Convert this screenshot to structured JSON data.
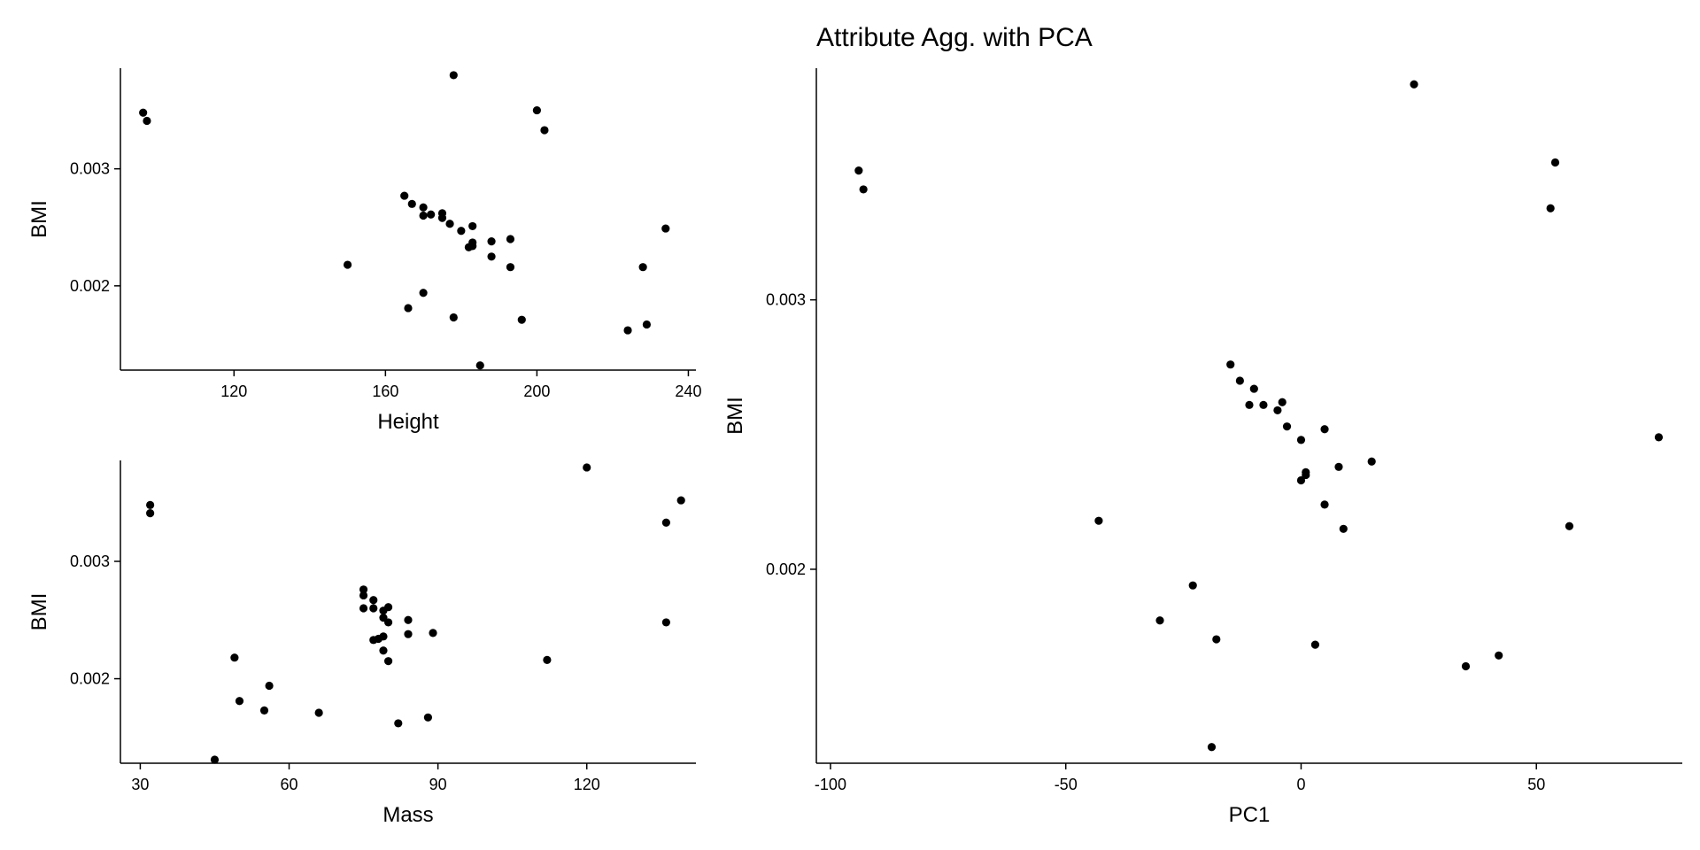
{
  "chart_data": [
    {
      "type": "scatter",
      "title": "",
      "xlabel": "Height",
      "ylabel": "BMI",
      "xlim": [
        90,
        242
      ],
      "ylim": [
        0.00128,
        0.00386
      ],
      "xticks": [
        120,
        160,
        200,
        240
      ],
      "yticks": [
        0.002,
        0.003
      ],
      "grid": false,
      "points": [
        {
          "x": 96,
          "y": 0.00348
        },
        {
          "x": 97,
          "y": 0.00341
        },
        {
          "x": 178,
          "y": 0.0038
        },
        {
          "x": 200,
          "y": 0.0035
        },
        {
          "x": 202,
          "y": 0.00333
        },
        {
          "x": 165,
          "y": 0.00277
        },
        {
          "x": 167,
          "y": 0.0027
        },
        {
          "x": 170,
          "y": 0.00267
        },
        {
          "x": 170,
          "y": 0.0026
        },
        {
          "x": 172,
          "y": 0.00261
        },
        {
          "x": 175,
          "y": 0.00262
        },
        {
          "x": 175,
          "y": 0.00258
        },
        {
          "x": 177,
          "y": 0.00253
        },
        {
          "x": 180,
          "y": 0.00247
        },
        {
          "x": 183,
          "y": 0.00251
        },
        {
          "x": 183,
          "y": 0.00237
        },
        {
          "x": 182,
          "y": 0.00233
        },
        {
          "x": 183,
          "y": 0.00234
        },
        {
          "x": 188,
          "y": 0.00238
        },
        {
          "x": 193,
          "y": 0.0024
        },
        {
          "x": 188,
          "y": 0.00225
        },
        {
          "x": 193,
          "y": 0.00216
        },
        {
          "x": 150,
          "y": 0.00218
        },
        {
          "x": 170,
          "y": 0.00194
        },
        {
          "x": 166,
          "y": 0.00181
        },
        {
          "x": 178,
          "y": 0.00173
        },
        {
          "x": 196,
          "y": 0.00171
        },
        {
          "x": 228,
          "y": 0.00216
        },
        {
          "x": 234,
          "y": 0.00249
        },
        {
          "x": 224,
          "y": 0.00162
        },
        {
          "x": 229,
          "y": 0.00167
        },
        {
          "x": 185,
          "y": 0.00132
        }
      ]
    },
    {
      "type": "scatter",
      "title": "",
      "xlabel": "Mass",
      "ylabel": "BMI",
      "xlim": [
        26,
        142
      ],
      "ylim": [
        0.00128,
        0.00386
      ],
      "xticks": [
        30,
        60,
        90,
        120
      ],
      "yticks": [
        0.002,
        0.003
      ],
      "grid": false,
      "points": [
        {
          "x": 32,
          "y": 0.00348
        },
        {
          "x": 32,
          "y": 0.00341
        },
        {
          "x": 120,
          "y": 0.0038
        },
        {
          "x": 139,
          "y": 0.00352
        },
        {
          "x": 136,
          "y": 0.00333
        },
        {
          "x": 136,
          "y": 0.00248
        },
        {
          "x": 75,
          "y": 0.00276
        },
        {
          "x": 75,
          "y": 0.00271
        },
        {
          "x": 75,
          "y": 0.0026
        },
        {
          "x": 77,
          "y": 0.00267
        },
        {
          "x": 77,
          "y": 0.0026
        },
        {
          "x": 79,
          "y": 0.00258
        },
        {
          "x": 80,
          "y": 0.00261
        },
        {
          "x": 79,
          "y": 0.00252
        },
        {
          "x": 80,
          "y": 0.00248
        },
        {
          "x": 84,
          "y": 0.0025
        },
        {
          "x": 77,
          "y": 0.00233
        },
        {
          "x": 78,
          "y": 0.00234
        },
        {
          "x": 79,
          "y": 0.00236
        },
        {
          "x": 84,
          "y": 0.00238
        },
        {
          "x": 89,
          "y": 0.00239
        },
        {
          "x": 79,
          "y": 0.00224
        },
        {
          "x": 80,
          "y": 0.00215
        },
        {
          "x": 112,
          "y": 0.00216
        },
        {
          "x": 49,
          "y": 0.00218
        },
        {
          "x": 56,
          "y": 0.00194
        },
        {
          "x": 50,
          "y": 0.00181
        },
        {
          "x": 55,
          "y": 0.00173
        },
        {
          "x": 66,
          "y": 0.00171
        },
        {
          "x": 82,
          "y": 0.00162
        },
        {
          "x": 88,
          "y": 0.00167
        },
        {
          "x": 45,
          "y": 0.00131
        }
      ]
    },
    {
      "type": "scatter",
      "title": "Attribute Agg. with PCA",
      "xlabel": "PC1",
      "ylabel": "BMI",
      "xlim": [
        -103,
        81
      ],
      "ylim": [
        0.00128,
        0.00386
      ],
      "xticks": [
        -100,
        -50,
        0,
        50
      ],
      "yticks": [
        0.002,
        0.003
      ],
      "grid": false,
      "points": [
        {
          "x": -94,
          "y": 0.00348
        },
        {
          "x": -93,
          "y": 0.00341
        },
        {
          "x": 24,
          "y": 0.0038
        },
        {
          "x": 54,
          "y": 0.00351
        },
        {
          "x": 53,
          "y": 0.00334
        },
        {
          "x": 76,
          "y": 0.00249
        },
        {
          "x": 57,
          "y": 0.00216
        },
        {
          "x": 42,
          "y": 0.00168
        },
        {
          "x": 35,
          "y": 0.00164
        },
        {
          "x": -15,
          "y": 0.00276
        },
        {
          "x": -13,
          "y": 0.0027
        },
        {
          "x": -10,
          "y": 0.00267
        },
        {
          "x": -8,
          "y": 0.00261
        },
        {
          "x": -11,
          "y": 0.00261
        },
        {
          "x": -4,
          "y": 0.00262
        },
        {
          "x": -5,
          "y": 0.00259
        },
        {
          "x": -3,
          "y": 0.00253
        },
        {
          "x": 5,
          "y": 0.00252
        },
        {
          "x": 0,
          "y": 0.00248
        },
        {
          "x": 8,
          "y": 0.00238
        },
        {
          "x": 15,
          "y": 0.0024
        },
        {
          "x": 1,
          "y": 0.00236
        },
        {
          "x": 0,
          "y": 0.00233
        },
        {
          "x": 1,
          "y": 0.00235
        },
        {
          "x": 5,
          "y": 0.00224
        },
        {
          "x": 9,
          "y": 0.00215
        },
        {
          "x": -43,
          "y": 0.00218
        },
        {
          "x": -23,
          "y": 0.00194
        },
        {
          "x": -30,
          "y": 0.00181
        },
        {
          "x": -18,
          "y": 0.00174
        },
        {
          "x": 3,
          "y": 0.00172
        },
        {
          "x": -19,
          "y": 0.00134
        }
      ]
    }
  ]
}
